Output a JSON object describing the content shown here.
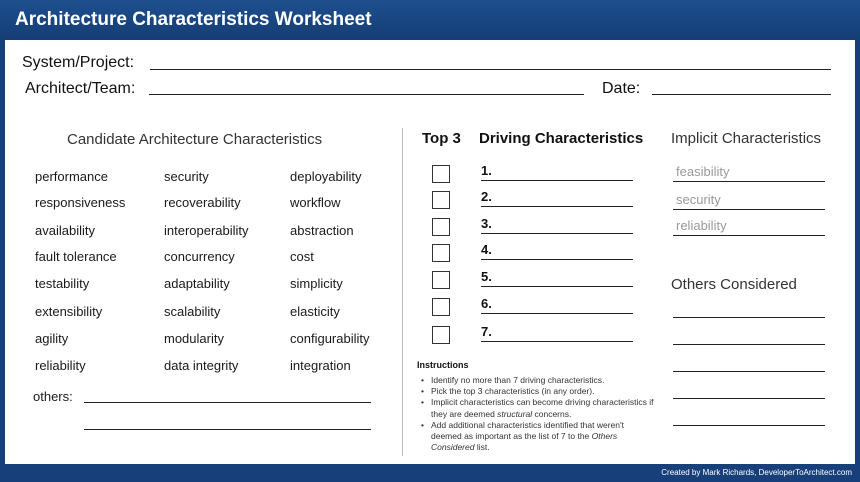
{
  "header": {
    "title": "Architecture Characteristics Worksheet"
  },
  "form": {
    "system_label": "System/Project:",
    "architect_label": "Architect/Team:",
    "date_label": "Date:"
  },
  "candidates": {
    "title": "Candidate Architecture Characteristics",
    "columns": [
      [
        "performance",
        "responsiveness",
        "availability",
        "fault tolerance",
        "testability",
        "extensibility",
        "agility",
        "reliability"
      ],
      [
        "security",
        "recoverability",
        "interoperability",
        "concurrency",
        "adaptability",
        "scalability",
        "modularity",
        "data integrity"
      ],
      [
        "deployability",
        "workflow",
        "abstraction",
        "cost",
        "simplicity",
        "elasticity",
        "configurability",
        "integration"
      ]
    ],
    "others_label": "others:"
  },
  "top3": {
    "title": "Top 3"
  },
  "driving": {
    "title": "Driving Characteristics",
    "numbers": [
      "1.",
      "2.",
      "3.",
      "4.",
      "5.",
      "6.",
      "7."
    ]
  },
  "implicit": {
    "title": "Implicit Characteristics",
    "items": [
      "feasibility",
      "security",
      "reliability"
    ]
  },
  "others_considered": {
    "title": "Others Considered"
  },
  "instructions": {
    "title": "Instructions",
    "items": [
      "Identify no more than 7 driving characteristics.",
      "Pick the top 3 characteristics (in any order).",
      [
        "Implicit characteristics can become driving characteristics if they are deemed ",
        "structural",
        " concerns."
      ],
      [
        "Add additional characteristics identified that weren't deemed as important as the list of 7 to the ",
        "Others Considered",
        " list."
      ]
    ]
  },
  "footer": {
    "credit": "Created by Mark Richards, DeveloperToArchitect.com"
  }
}
